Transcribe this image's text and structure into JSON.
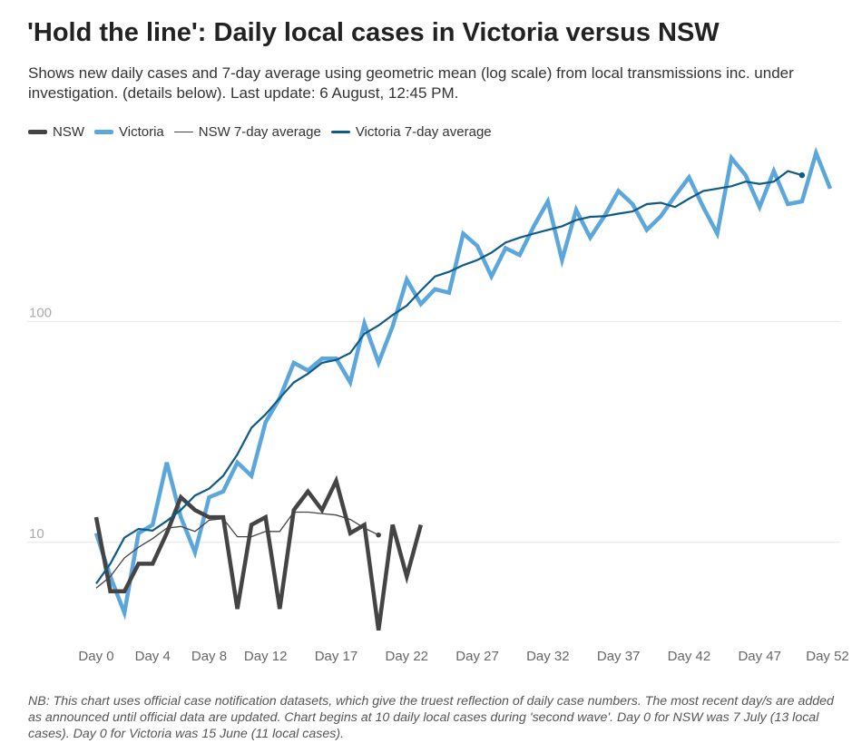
{
  "header": {
    "title": "'Hold the line': Daily local cases in Victoria versus NSW",
    "subtitle": "Shows new daily cases and 7-day average using geometric mean (log scale) from local transmissions inc. under investigation. (details below). Last update: 6 August, 12:45 PM."
  },
  "footer": {
    "note": "NB: This chart uses official case notification datasets, which give the truest reflection of daily case numbers. The most recent day/s are added as announced until official data are updated. Chart begins at 10 daily local cases during 'second wave'. Day 0 for NSW was 7 July (13 local cases). Day 0 for Victoria was 15 June (11 local cases)."
  },
  "chart_data": {
    "type": "line",
    "y_scale": "log",
    "ylim": [
      3.3,
      600
    ],
    "xlim": [
      0,
      52
    ],
    "y_ticks": [
      {
        "value": 10,
        "label": "10"
      },
      {
        "value": 100,
        "label": "100"
      }
    ],
    "x_ticks": [
      {
        "value": 0,
        "label": "Day 0"
      },
      {
        "value": 4,
        "label": "Day 4"
      },
      {
        "value": 8,
        "label": "Day 8"
      },
      {
        "value": 12,
        "label": "Day 12"
      },
      {
        "value": 17,
        "label": "Day 17"
      },
      {
        "value": 22,
        "label": "Day 22"
      },
      {
        "value": 27,
        "label": "Day 27"
      },
      {
        "value": 32,
        "label": "Day 32"
      },
      {
        "value": 37,
        "label": "Day 37"
      },
      {
        "value": 42,
        "label": "Day 42"
      },
      {
        "value": 47,
        "label": "Day 47"
      },
      {
        "value": 52,
        "label": "Day 52"
      }
    ],
    "grid": {
      "horizontal": true,
      "vertical": false
    },
    "legend": {
      "position": "top-left"
    },
    "series": [
      {
        "name": "Victoria",
        "color": "#5ba6db",
        "x_start": 0,
        "values": [
          11,
          7,
          4.8,
          11,
          12,
          23,
          13,
          9,
          16,
          17,
          23,
          20,
          35,
          45,
          65,
          60,
          68,
          68,
          53,
          98,
          65,
          95,
          155,
          120,
          140,
          135,
          250,
          220,
          160,
          215,
          200,
          270,
          350,
          190,
          320,
          240,
          300,
          390,
          340,
          260,
          300,
          370,
          450,
          330,
          250,
          550,
          460,
          330,
          480,
          340,
          350,
          580,
          400
        ]
      },
      {
        "name": "NSW",
        "color": "#444444",
        "x_start": 0,
        "values": [
          13,
          6,
          6,
          8,
          8,
          11,
          16,
          14,
          13,
          13,
          5,
          12,
          13,
          5,
          14,
          17,
          14,
          19,
          11,
          12,
          4,
          12,
          7,
          12
        ]
      },
      {
        "name": "NSW 7-day average",
        "color": "#444444",
        "x_start": 0,
        "values": [
          6.2,
          7,
          8.5,
          9.5,
          10.4,
          11.6,
          11.8,
          11.2,
          12.6,
          12.8,
          10.6,
          10.6,
          11.2,
          11.2,
          13.7,
          13.7,
          13.5,
          13.3,
          12.7,
          11.6,
          10.8
        ]
      },
      {
        "name": "Victoria 7-day average",
        "color": "#0f5a87",
        "x_start": 0,
        "values": [
          6.5,
          8,
          10.5,
          11.5,
          11.3,
          12.5,
          14,
          16.3,
          17.5,
          20,
          25,
          33,
          38,
          45,
          53,
          58,
          65,
          67,
          72,
          88,
          96,
          107,
          118,
          138,
          160,
          168,
          180,
          190,
          205,
          228,
          240,
          250,
          260,
          270,
          288,
          298,
          300,
          308,
          315,
          340,
          345,
          330,
          360,
          390,
          400,
          410,
          430,
          420,
          430,
          480,
          460
        ]
      }
    ]
  }
}
